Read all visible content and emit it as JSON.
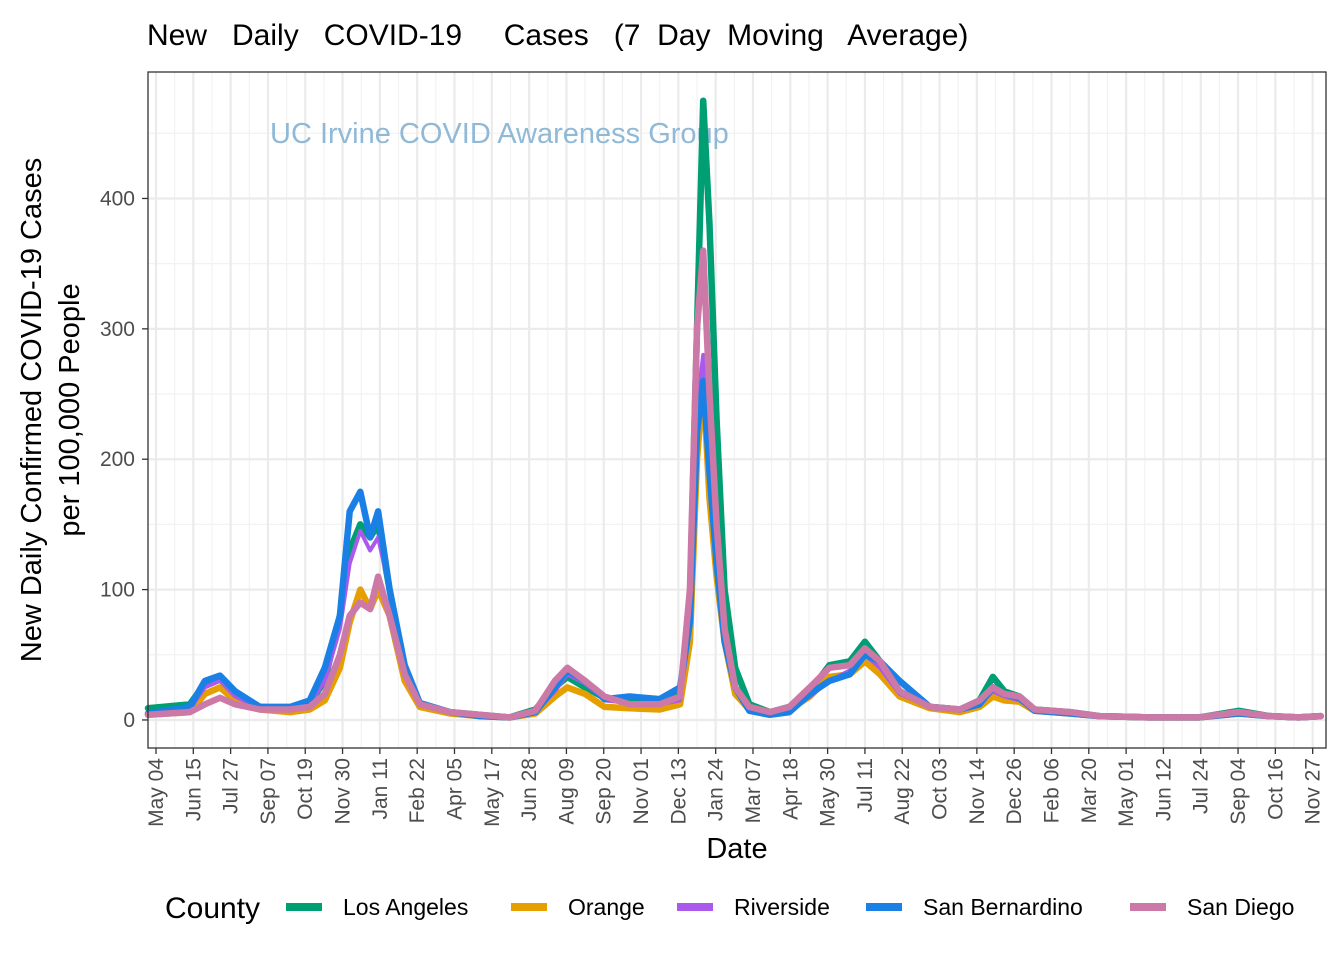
{
  "chart_data": {
    "type": "line",
    "title": "New   Daily   COVID-19     Cases   (7  Day  Moving   Average)",
    "watermark": "UC Irvine COVID Awareness Group",
    "xlabel": "Date",
    "ylabel": [
      "New Daily Confirmed COVID-19 Cases",
      "per 100,000 People"
    ],
    "xlim": [
      "2020-04-25",
      "2023-12-12"
    ],
    "ylim": [
      -21.5,
      497
    ],
    "grid": true,
    "y_ticks": [
      0,
      100,
      200,
      300,
      400
    ],
    "x_ticks": [
      {
        "date": "2020-05-04",
        "label": "May 04"
      },
      {
        "date": "2020-06-15",
        "label": "Jun 15"
      },
      {
        "date": "2020-07-27",
        "label": "Jul 27"
      },
      {
        "date": "2020-09-07",
        "label": "Sep 07"
      },
      {
        "date": "2020-10-19",
        "label": "Oct 19"
      },
      {
        "date": "2020-11-30",
        "label": "Nov 30"
      },
      {
        "date": "2021-01-11",
        "label": "Jan 11"
      },
      {
        "date": "2021-02-22",
        "label": "Feb 22"
      },
      {
        "date": "2021-04-05",
        "label": "Apr 05"
      },
      {
        "date": "2021-05-17",
        "label": "May 17"
      },
      {
        "date": "2021-06-28",
        "label": "Jun 28"
      },
      {
        "date": "2021-08-09",
        "label": "Aug 09"
      },
      {
        "date": "2021-09-20",
        "label": "Sep 20"
      },
      {
        "date": "2021-11-01",
        "label": "Nov 01"
      },
      {
        "date": "2021-12-13",
        "label": "Dec 13"
      },
      {
        "date": "2022-01-24",
        "label": "Jan 24"
      },
      {
        "date": "2022-03-07",
        "label": "Mar 07"
      },
      {
        "date": "2022-04-18",
        "label": "Apr 18"
      },
      {
        "date": "2022-05-30",
        "label": "May 30"
      },
      {
        "date": "2022-07-11",
        "label": "Jul 11"
      },
      {
        "date": "2022-08-22",
        "label": "Aug 22"
      },
      {
        "date": "2022-10-03",
        "label": "Oct 03"
      },
      {
        "date": "2022-11-14",
        "label": "Nov 14"
      },
      {
        "date": "2022-12-26",
        "label": "Dec 26"
      },
      {
        "date": "2023-02-06",
        "label": "Feb 06"
      },
      {
        "date": "2023-03-20",
        "label": "Mar 20"
      },
      {
        "date": "2023-05-01",
        "label": "May 01"
      },
      {
        "date": "2023-06-12",
        "label": "Jun 12"
      },
      {
        "date": "2023-07-24",
        "label": "Jul 24"
      },
      {
        "date": "2023-09-04",
        "label": "Sep 04"
      },
      {
        "date": "2023-10-16",
        "label": "Oct 16"
      },
      {
        "date": "2023-11-27",
        "label": "Nov 27"
      }
    ],
    "legend": {
      "title": "County",
      "position": "bottom"
    },
    "x": [
      "2020-04-25",
      "2020-06-11",
      "2020-06-28",
      "2020-07-15",
      "2020-08-01",
      "2020-08-29",
      "2020-10-02",
      "2020-10-24",
      "2020-11-10",
      "2020-11-27",
      "2020-12-08",
      "2020-12-20",
      "2020-12-31",
      "2021-01-09",
      "2021-01-22",
      "2021-02-08",
      "2021-02-25",
      "2021-03-31",
      "2021-05-04",
      "2021-06-06",
      "2021-07-05",
      "2021-07-27",
      "2021-08-10",
      "2021-08-30",
      "2021-09-21",
      "2021-10-19",
      "2021-11-22",
      "2021-12-15",
      "2021-12-26",
      "2022-01-03",
      "2022-01-10",
      "2022-01-17",
      "2022-01-25",
      "2022-02-03",
      "2022-02-15",
      "2022-03-03",
      "2022-03-26",
      "2022-04-17",
      "2022-05-10",
      "2022-06-01",
      "2022-06-24",
      "2022-07-11",
      "2022-07-28",
      "2022-08-19",
      "2022-09-22",
      "2022-10-26",
      "2022-11-17",
      "2022-12-02",
      "2022-12-15",
      "2023-01-01",
      "2023-01-18",
      "2023-02-27",
      "2023-04-01",
      "2023-05-27",
      "2023-07-22",
      "2023-09-05",
      "2023-10-09",
      "2023-11-11",
      "2023-12-06"
    ],
    "series": [
      {
        "name": "Los Angeles",
        "color": "#009e73",
        "values": [
          9,
          12,
          28,
          32,
          20,
          10,
          9,
          13,
          30,
          80,
          130,
          150,
          140,
          150,
          100,
          40,
          12,
          6,
          4,
          2,
          8,
          25,
          33,
          25,
          17,
          14,
          12,
          20,
          90,
          300,
          475,
          380,
          230,
          100,
          40,
          12,
          6,
          10,
          22,
          42,
          45,
          60,
          45,
          22,
          10,
          8,
          15,
          33,
          22,
          18,
          8,
          6,
          3,
          2,
          2,
          7,
          3,
          2,
          3
        ]
      },
      {
        "name": "Orange",
        "color": "#e69f00",
        "values": [
          4,
          6,
          20,
          25,
          15,
          8,
          6,
          8,
          15,
          40,
          75,
          100,
          85,
          100,
          80,
          30,
          10,
          5,
          3,
          2,
          5,
          18,
          25,
          20,
          10,
          9,
          8,
          12,
          60,
          200,
          260,
          170,
          110,
          60,
          20,
          8,
          5,
          8,
          18,
          33,
          35,
          45,
          35,
          18,
          9,
          6,
          10,
          18,
          15,
          14,
          7,
          5,
          3,
          2,
          2,
          5,
          3,
          2,
          3
        ]
      },
      {
        "name": "Riverside",
        "color": "#a95aed",
        "values": [
          4,
          8,
          25,
          30,
          18,
          9,
          8,
          12,
          30,
          70,
          120,
          145,
          130,
          140,
          100,
          40,
          12,
          6,
          3,
          2,
          6,
          22,
          35,
          28,
          15,
          13,
          12,
          15,
          70,
          240,
          280,
          200,
          130,
          70,
          25,
          8,
          5,
          7,
          18,
          30,
          38,
          50,
          40,
          20,
          10,
          7,
          12,
          22,
          18,
          15,
          7,
          5,
          3,
          2,
          2,
          5,
          3,
          2,
          3
        ]
      },
      {
        "name": "San Bernardino",
        "color": "#1a80e6",
        "values": [
          5,
          10,
          30,
          34,
          22,
          10,
          10,
          15,
          40,
          80,
          160,
          175,
          140,
          160,
          100,
          42,
          13,
          6,
          3,
          2,
          6,
          25,
          38,
          30,
          16,
          18,
          16,
          25,
          75,
          220,
          260,
          190,
          120,
          60,
          25,
          7,
          4,
          6,
          20,
          30,
          35,
          50,
          45,
          30,
          10,
          8,
          12,
          25,
          20,
          17,
          7,
          5,
          3,
          2,
          2,
          5,
          3,
          2,
          3
        ]
      },
      {
        "name": "San Diego",
        "color": "#cc79a7",
        "values": [
          4,
          6,
          12,
          17,
          12,
          8,
          8,
          10,
          20,
          50,
          80,
          90,
          85,
          110,
          80,
          35,
          12,
          6,
          4,
          2,
          7,
          30,
          40,
          30,
          18,
          12,
          12,
          18,
          100,
          300,
          360,
          250,
          150,
          70,
          25,
          10,
          6,
          10,
          25,
          40,
          42,
          55,
          45,
          22,
          10,
          8,
          15,
          25,
          20,
          18,
          8,
          6,
          3,
          2,
          2,
          6,
          3,
          2,
          3
        ]
      }
    ]
  }
}
